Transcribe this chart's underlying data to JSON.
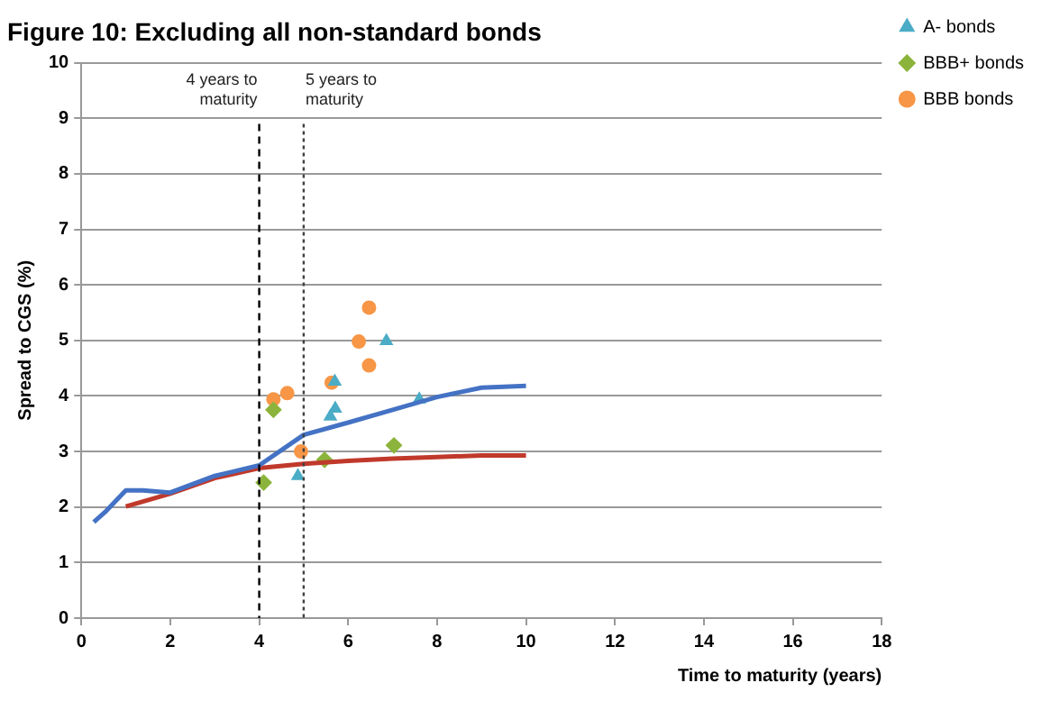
{
  "chart_data": {
    "type": "line",
    "title": "Figure 10: Excluding all non-standard bonds",
    "xlabel": "Time to maturity (years)",
    "ylabel": "Spread to CGS (%)",
    "xlim": [
      0,
      18
    ],
    "xticks": [
      0,
      2,
      4,
      6,
      8,
      10,
      12,
      14,
      16,
      18
    ],
    "ylim": [
      0,
      10
    ],
    "yticks": [
      0,
      1,
      2,
      3,
      4,
      5,
      6,
      7,
      8,
      9,
      10
    ],
    "grid": "y",
    "legend": "right",
    "ref_lines": [
      {
        "axis": "x",
        "value": 4,
        "label": "4 years to maturity",
        "line_style": "dashed",
        "color": "#000000"
      },
      {
        "axis": "x",
        "value": 5,
        "label": "5 years to maturity",
        "line_style": "dotted",
        "color": "#404040"
      }
    ],
    "series": [
      {
        "type": "line",
        "color": "#4472c4",
        "marker": "none",
        "x": [
          0.28,
          0.56,
          1,
          1.38,
          2,
          3,
          4,
          5,
          6,
          7,
          8,
          9,
          10
        ],
        "values": [
          1.73,
          1.93,
          2.3,
          2.3,
          2.26,
          2.56,
          2.75,
          3.3,
          3.52,
          3.75,
          3.98,
          4.15,
          4.18
        ]
      },
      {
        "type": "line",
        "color": "#c0392b",
        "marker": "none",
        "x": [
          1,
          2,
          3,
          4,
          5,
          6,
          7,
          8,
          9,
          10
        ],
        "values": [
          2.01,
          2.24,
          2.52,
          2.7,
          2.78,
          2.83,
          2.87,
          2.9,
          2.93,
          2.93
        ]
      },
      {
        "type": "scatter",
        "name": "A- bonds",
        "color": "#4bacc6",
        "marker": "triangle",
        "x": [
          4.87,
          5.6,
          5.71,
          5.7,
          6.86,
          7.6
        ],
        "values": [
          2.56,
          3.63,
          3.77,
          4.26,
          4.99,
          3.94
        ]
      },
      {
        "type": "scatter",
        "name": "BBB+ bonds",
        "color": "#8cb43c",
        "marker": "diamond",
        "x": [
          4.1,
          4.32,
          5.47,
          7.03
        ],
        "values": [
          2.44,
          3.75,
          2.85,
          3.11
        ]
      },
      {
        "type": "scatter",
        "name": "BBB bonds",
        "color": "#f79646",
        "marker": "circle",
        "x": [
          4.32,
          4.63,
          4.94,
          5.63,
          6.24,
          6.47,
          6.47
        ],
        "values": [
          3.94,
          4.05,
          3.0,
          4.24,
          4.98,
          5.59,
          4.55
        ]
      }
    ]
  }
}
